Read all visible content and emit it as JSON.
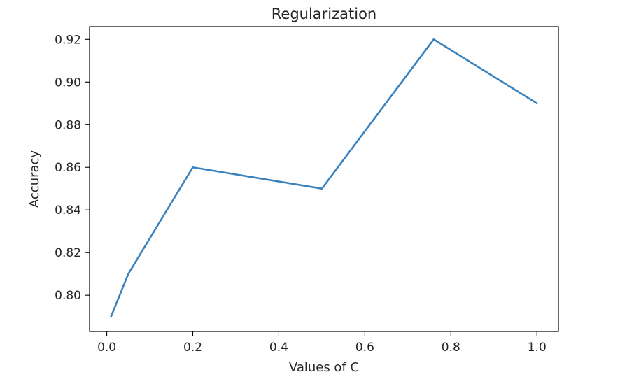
{
  "chart_data": {
    "type": "line",
    "title": "Regularization",
    "xlabel": "Values of C",
    "ylabel": "Accuracy",
    "xlim": [
      -0.04,
      1.05
    ],
    "ylim": [
      0.783,
      0.926
    ],
    "xticks": [
      0.0,
      0.2,
      0.4,
      0.6,
      0.8,
      1.0
    ],
    "xtick_labels": [
      "0.0",
      "0.2",
      "0.4",
      "0.6",
      "0.8",
      "1.0"
    ],
    "yticks": [
      0.8,
      0.82,
      0.84,
      0.86,
      0.88,
      0.9,
      0.92
    ],
    "ytick_labels": [
      "0.80",
      "0.82",
      "0.84",
      "0.86",
      "0.88",
      "0.90",
      "0.92"
    ],
    "grid": false,
    "series": [
      {
        "color": "#3a82bd",
        "x": [
          0.01,
          0.05,
          0.2,
          0.5,
          0.76,
          1.0
        ],
        "y": [
          0.79,
          0.81,
          0.86,
          0.85,
          0.92,
          0.89
        ]
      }
    ]
  }
}
